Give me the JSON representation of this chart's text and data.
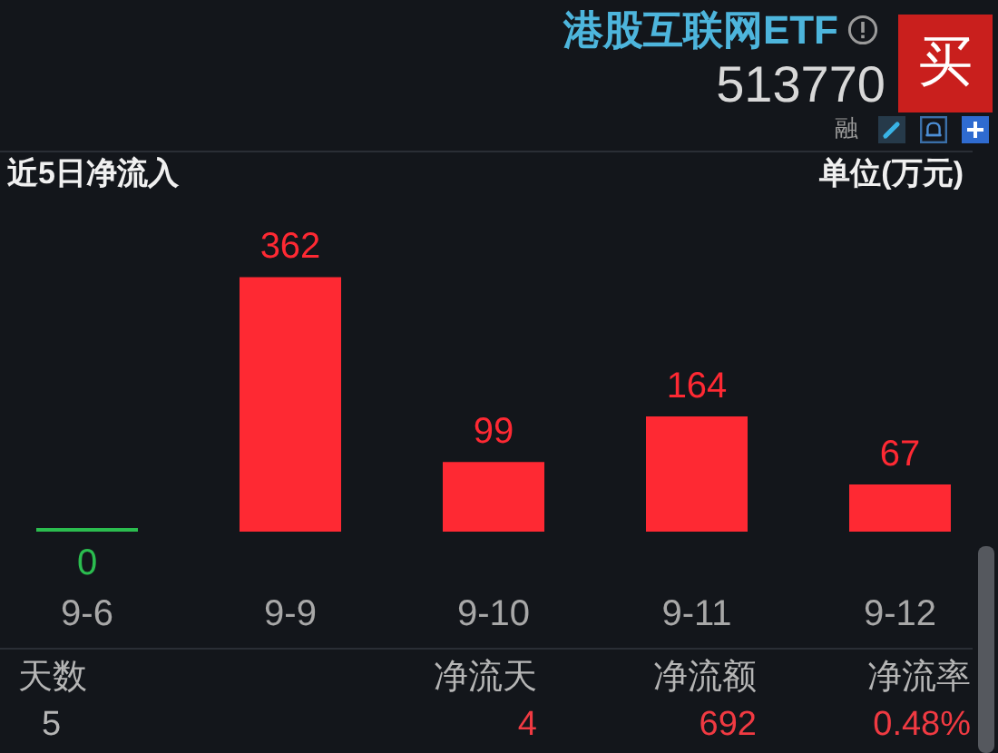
{
  "chart_data": {
    "type": "bar",
    "title": "近5日净流入",
    "categories": [
      "9-6",
      "9-9",
      "9-10",
      "9-11",
      "9-12"
    ],
    "values": [
      0,
      362,
      99,
      164,
      67
    ],
    "colors": [
      "#2bbd4f",
      "#fe2933",
      "#fe2933",
      "#fe2933",
      "#fe2933"
    ],
    "data_labels": true,
    "annotations": [
      "港股互联网ETF",
      "513770",
      "买",
      "融",
      "单位(万元)",
      "天数",
      "5",
      "净流天",
      "4",
      "净流额",
      "692",
      "净流率",
      "0.48%"
    ]
  }
}
